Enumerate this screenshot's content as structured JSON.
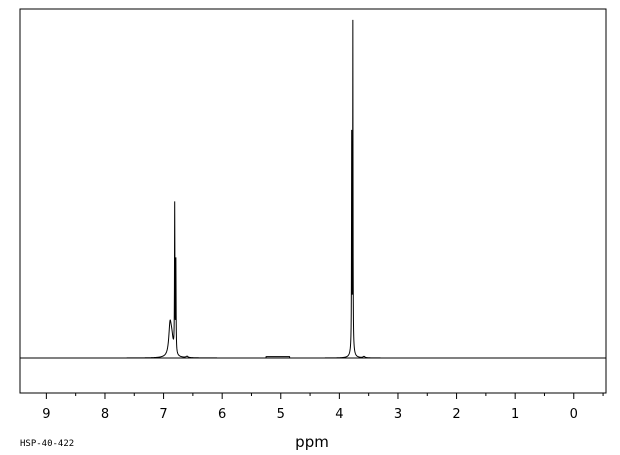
{
  "chart_data": {
    "type": "line",
    "title": "",
    "xlabel": "ppm",
    "ylabel": "",
    "xlim": [
      9.45,
      -0.55
    ],
    "ylim": [
      0,
      1.0
    ],
    "x_reversed": true,
    "grid": false,
    "major_ticks": [
      9,
      8,
      7,
      6,
      5,
      4,
      3,
      2,
      1,
      0
    ],
    "tick_labels": [
      "9",
      "8",
      "7",
      "6",
      "5",
      "4",
      "3",
      "2",
      "1",
      "0"
    ],
    "minor_tick_step": 0.5,
    "series": [
      {
        "peaks": [
          {
            "ppm": 6.89,
            "height": 0.085,
            "width": 0.025
          },
          {
            "ppm": 6.86,
            "height": 0.05,
            "width": 0.03
          },
          {
            "ppm": 6.81,
            "height": 0.435,
            "width": 0.004
          },
          {
            "ppm": 6.79,
            "height": 0.27,
            "width": 0.004
          },
          {
            "ppm": 3.79,
            "height": 0.61,
            "width": 0.003
          },
          {
            "ppm": 3.77,
            "height": 0.945,
            "width": 0.003
          },
          {
            "ppm": 3.78,
            "height": 0.06,
            "width": 0.02
          },
          {
            "ppm": 6.6,
            "height": 0.004,
            "width": 0.02
          },
          {
            "ppm": 3.58,
            "height": 0.004,
            "width": 0.02
          }
        ],
        "broad_humps": [
          {
            "from": 5.25,
            "to": 4.85,
            "height": 0.004
          }
        ]
      }
    ]
  },
  "footer": {
    "sample_id": "HSP-40-422"
  }
}
